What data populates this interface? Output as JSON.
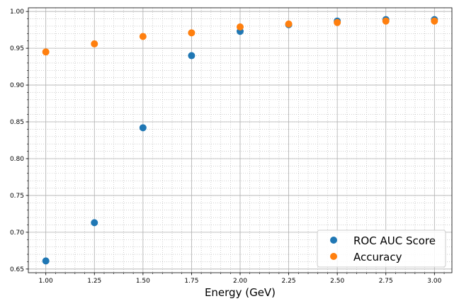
{
  "chart_data": {
    "type": "scatter",
    "xlabel": "Energy (GeV)",
    "ylabel": "",
    "xlim": [
      0.91,
      3.09
    ],
    "ylim": [
      0.645,
      1.005
    ],
    "x_ticks": [
      "1.00",
      "1.25",
      "1.50",
      "1.75",
      "2.00",
      "2.25",
      "2.50",
      "2.75",
      "3.00"
    ],
    "y_ticks": [
      "0.65",
      "0.70",
      "0.75",
      "0.80",
      "0.85",
      "0.90",
      "0.95",
      "1.00"
    ],
    "grid": "major and minor",
    "legend_position": "lower-right",
    "x": [
      1.0,
      1.25,
      1.5,
      1.75,
      2.0,
      2.25,
      2.5,
      2.75,
      3.0
    ],
    "series": [
      {
        "name": "ROC AUC Score",
        "color": "#1f77b4",
        "values": [
          0.661,
          0.713,
          0.842,
          0.94,
          0.973,
          0.982,
          0.987,
          0.989,
          0.989
        ]
      },
      {
        "name": "Accuracy",
        "color": "#ff7f0e",
        "values": [
          0.945,
          0.956,
          0.966,
          0.971,
          0.979,
          0.983,
          0.985,
          0.987,
          0.987
        ]
      }
    ]
  }
}
